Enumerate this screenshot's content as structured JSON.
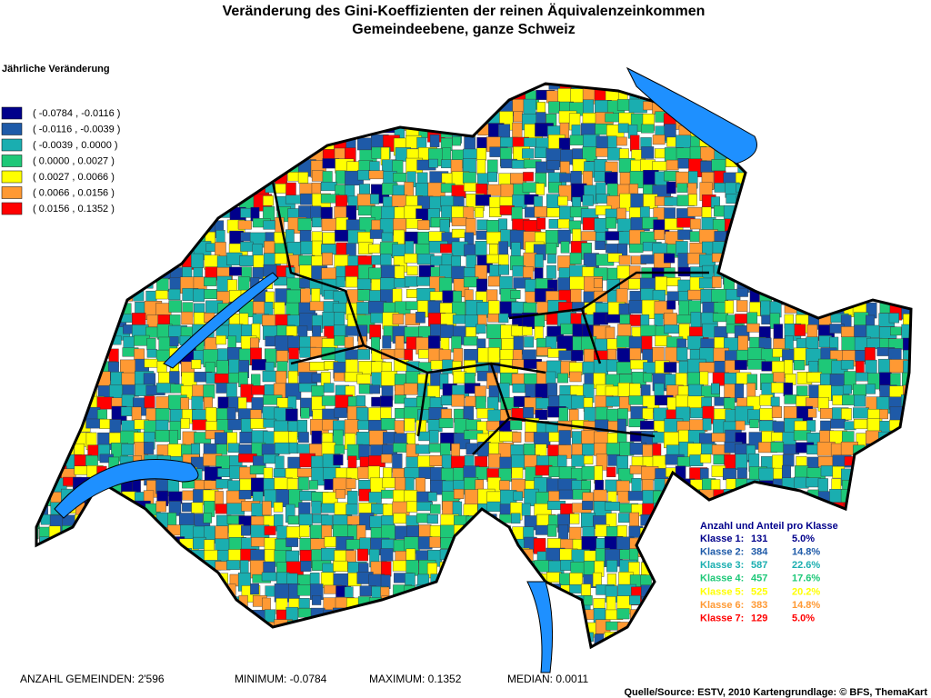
{
  "title": [
    "Veränderung des Gini-Koeffizienten der reinen Äquivalenzeinkommen",
    "Gemeindeebene, ganze Schweiz"
  ],
  "legend": {
    "title": "Jährliche Veränderung",
    "items": [
      {
        "label": "( -0.0784 , -0.0116 )",
        "color": "#00008b"
      },
      {
        "label": "( -0.0116 , -0.0039 )",
        "color": "#1e5aa8"
      },
      {
        "label": "( -0.0039 , 0.0000 )",
        "color": "#1aaeb0"
      },
      {
        "label": "( 0.0000 , 0.0027 )",
        "color": "#1ec878"
      },
      {
        "label": "( 0.0027 , 0.0066 )",
        "color": "#ffff00"
      },
      {
        "label": "( 0.0066 , 0.0156 )",
        "color": "#ff9933"
      },
      {
        "label": "( 0.0156 , 0.1352 )",
        "color": "#ff0000"
      }
    ]
  },
  "class_table": {
    "title": "Anzahl und Anteil pro Klasse",
    "rows": [
      {
        "label": "Klasse 1:",
        "count": 131,
        "share": "5.0%"
      },
      {
        "label": "Klasse 2:",
        "count": 384,
        "share": "14.8%"
      },
      {
        "label": "Klasse 3:",
        "count": 587,
        "share": "22.6%"
      },
      {
        "label": "Klasse 4:",
        "count": 457,
        "share": "17.6%"
      },
      {
        "label": "Klasse 5:",
        "count": 525,
        "share": "20.2%"
      },
      {
        "label": "Klasse 6:",
        "count": 383,
        "share": "14.8%"
      },
      {
        "label": "Klasse 7:",
        "count": 129,
        "share": "5.0%"
      }
    ]
  },
  "footer": [
    "ANZAHL GEMEINDEN: 2'596",
    "MINIMUM: -0.0784",
    "MAXIMUM: 0.1352",
    "MEDIAN: 0.0011"
  ],
  "source": "Quelle/Source: ESTV, 2010 Kartengrundlage: © BFS, ThemaKart"
}
